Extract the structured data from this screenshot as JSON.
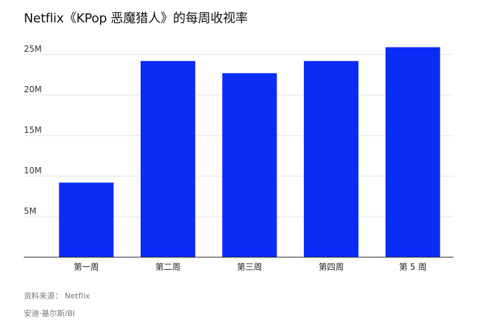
{
  "chart_data": {
    "type": "bar",
    "title": "Netflix《KPop 恶魔猎人》的每周收视率",
    "xlabel": "",
    "ylabel": "",
    "categories": [
      "第一周",
      "第二周",
      "第三周",
      "第四周",
      "第 5 周"
    ],
    "values": [
      9.2,
      24.2,
      22.7,
      24.2,
      25.9
    ],
    "ylim": [
      0,
      27
    ],
    "yticks": [
      5,
      10,
      15,
      20,
      25
    ],
    "ytick_labels": [
      "5M",
      "10M",
      "15M",
      "20M",
      "25M"
    ],
    "bar_color": "#0a2cf5",
    "grid": true,
    "legend": "none"
  },
  "footer": {
    "source": "资料来源： Netflix",
    "credit": "安迪·基尔斯/BI"
  }
}
